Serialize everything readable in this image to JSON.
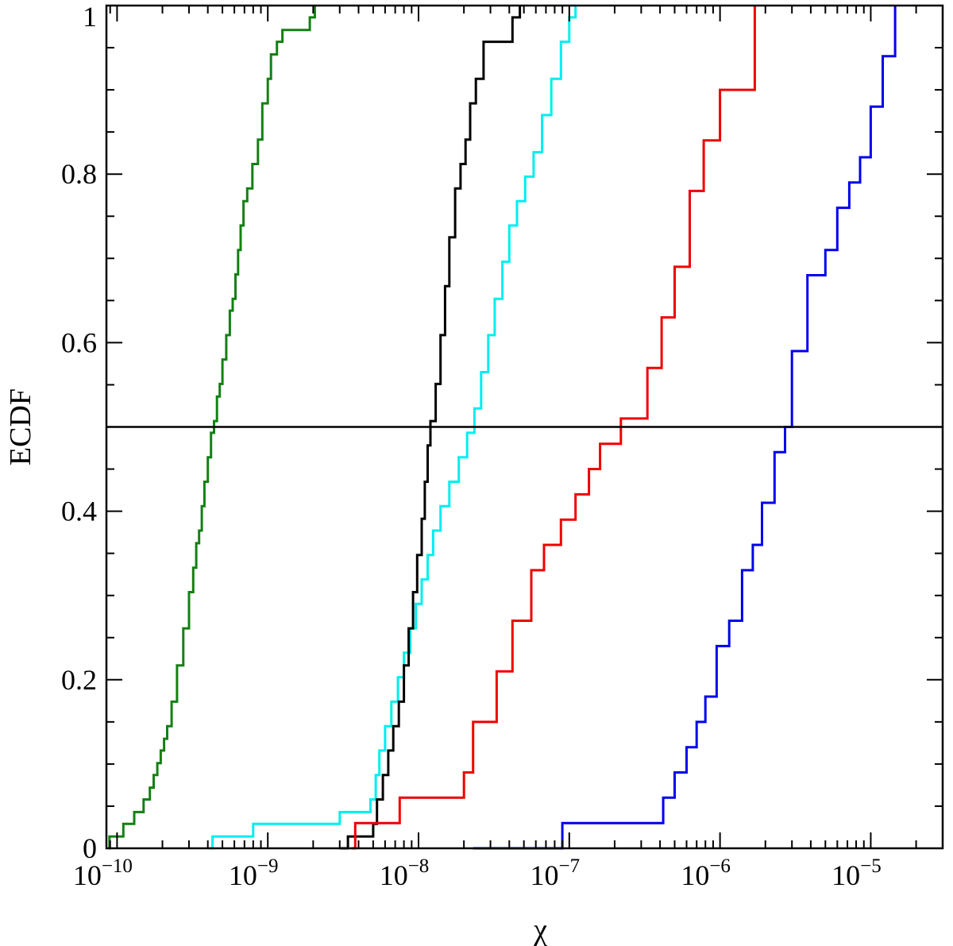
{
  "chart_data": {
    "type": "line",
    "title": "",
    "xlabel": "χ",
    "ylabel": "ECDF",
    "xscale": "log",
    "xlim": [
      8.5e-11,
      3e-05
    ],
    "ylim": [
      0,
      1
    ],
    "grid": false,
    "legend": "none",
    "x_ticks": [
      {
        "value": 1e-10,
        "base": "10",
        "exp": "−10"
      },
      {
        "value": 1e-09,
        "base": "10",
        "exp": "−9"
      },
      {
        "value": 1e-08,
        "base": "10",
        "exp": "−8"
      },
      {
        "value": 1e-07,
        "base": "10",
        "exp": "−7"
      },
      {
        "value": 1e-06,
        "base": "10",
        "exp": "−6"
      },
      {
        "value": 1e-05,
        "base": "10",
        "exp": "−5"
      }
    ],
    "y_ticks": [
      {
        "value": 0,
        "label": "0"
      },
      {
        "value": 0.2,
        "label": "0.2"
      },
      {
        "value": 0.4,
        "label": "0.4"
      },
      {
        "value": 0.6,
        "label": "0.6"
      },
      {
        "value": 0.8,
        "label": "0.8"
      },
      {
        "value": 1,
        "label": "1"
      }
    ],
    "reference_line": {
      "y": 0.5,
      "color": "#000000"
    },
    "series": [
      {
        "color": "#138013",
        "x": [
          8.8e-11,
          8.9e-11,
          1.1e-10,
          1.3e-10,
          1.5e-10,
          1.65e-10,
          1.75e-10,
          1.85e-10,
          1.95e-10,
          2.05e-10,
          2.15e-10,
          2.3e-10,
          2.5e-10,
          2.75e-10,
          3e-10,
          3.2e-10,
          3.35e-10,
          3.5e-10,
          3.65e-10,
          3.8e-10,
          4e-10,
          4.2e-10,
          4.4e-10,
          4.6e-10,
          4.8e-10,
          5e-10,
          5.3e-10,
          5.6e-10,
          5.85e-10,
          6.1e-10,
          6.35e-10,
          6.6e-10,
          6.9e-10,
          7.3e-10,
          7.9e-10,
          8.6e-10,
          9.2e-10,
          1e-09,
          1.05e-09,
          1.15e-09,
          1.25e-09,
          1.45e-09,
          1.9e-09,
          2.05e-09
        ],
        "y": [
          0,
          0.014,
          0.029,
          0.043,
          0.058,
          0.072,
          0.087,
          0.101,
          0.116,
          0.13,
          0.145,
          0.174,
          0.217,
          0.261,
          0.304,
          0.333,
          0.362,
          0.377,
          0.406,
          0.435,
          0.464,
          0.493,
          0.507,
          0.536,
          0.551,
          0.58,
          0.609,
          0.638,
          0.652,
          0.681,
          0.71,
          0.739,
          0.768,
          0.783,
          0.812,
          0.841,
          0.884,
          0.913,
          0.942,
          0.957,
          0.971,
          0.971,
          0.986,
          1.0
        ]
      },
      {
        "color": "#00eeee",
        "x": [
          4.1e-10,
          4.3e-10,
          8e-10,
          3e-09,
          4.8e-09,
          5.2e-09,
          5.5e-09,
          6e-09,
          6.6e-09,
          7.3e-09,
          8e-09,
          8.8e-09,
          9.6e-09,
          1.05e-08,
          1.15e-08,
          1.25e-08,
          1.4e-08,
          1.6e-08,
          1.85e-08,
          2.1e-08,
          2.35e-08,
          2.6e-08,
          2.9e-08,
          3.2e-08,
          3.6e-08,
          4e-08,
          4.5e-08,
          5.1e-08,
          5.8e-08,
          6.6e-08,
          7.6e-08,
          8.8e-08,
          1e-07,
          1.1e-07
        ],
        "y": [
          0,
          0.014,
          0.029,
          0.043,
          0.058,
          0.087,
          0.116,
          0.145,
          0.174,
          0.203,
          0.232,
          0.261,
          0.29,
          0.319,
          0.348,
          0.377,
          0.406,
          0.435,
          0.464,
          0.493,
          0.522,
          0.565,
          0.609,
          0.652,
          0.696,
          0.739,
          0.768,
          0.797,
          0.826,
          0.87,
          0.913,
          0.957,
          0.986,
          1.0
        ]
      },
      {
        "color": "#000000",
        "x": [
          3e-09,
          3.4e-09,
          5e-09,
          5.3e-09,
          5.8e-09,
          6.3e-09,
          6.8e-09,
          7.4e-09,
          8e-09,
          8.6e-09,
          9.2e-09,
          9.8e-09,
          1.05e-08,
          1.1e-08,
          1.15e-08,
          1.2e-08,
          1.3e-08,
          1.4e-08,
          1.5e-08,
          1.6e-08,
          1.75e-08,
          1.9e-08,
          2.05e-08,
          2.2e-08,
          2.4e-08,
          2.7e-08,
          4.2e-08,
          4.7e-08
        ],
        "y": [
          0,
          0.014,
          0.029,
          0.058,
          0.087,
          0.116,
          0.145,
          0.174,
          0.217,
          0.261,
          0.304,
          0.348,
          0.391,
          0.435,
          0.478,
          0.507,
          0.551,
          0.609,
          0.667,
          0.725,
          0.783,
          0.812,
          0.841,
          0.884,
          0.913,
          0.957,
          0.986,
          1.0
        ]
      },
      {
        "color": "#ee0000",
        "x": [
          3.6e-09,
          3.8e-09,
          7.5e-09,
          2e-08,
          2.3e-08,
          3.3e-08,
          4.2e-08,
          5.6e-08,
          6.8e-08,
          8.8e-08,
          1.1e-07,
          1.35e-07,
          1.6e-07,
          2.2e-07,
          3.3e-07,
          4.1e-07,
          5e-07,
          6.3e-07,
          7.8e-07,
          1e-06,
          1.7e-06
        ],
        "y": [
          0,
          0.03,
          0.06,
          0.09,
          0.15,
          0.21,
          0.27,
          0.33,
          0.36,
          0.39,
          0.42,
          0.45,
          0.48,
          0.51,
          0.57,
          0.63,
          0.69,
          0.78,
          0.84,
          0.9,
          1.0
        ]
      },
      {
        "color": "#0000ee",
        "x": [
          2.3e-08,
          9e-08,
          4.2e-07,
          5e-07,
          6e-07,
          7e-07,
          8e-07,
          9.5e-07,
          1.15e-06,
          1.4e-06,
          1.65e-06,
          1.9e-06,
          2.3e-06,
          2.7e-06,
          3e-06,
          3.8e-06,
          5e-06,
          6e-06,
          7.2e-06,
          8.5e-06,
          1e-05,
          1.2e-05,
          1.45e-05
        ],
        "y": [
          0,
          0.03,
          0.06,
          0.09,
          0.12,
          0.15,
          0.18,
          0.24,
          0.27,
          0.33,
          0.36,
          0.41,
          0.47,
          0.5,
          0.59,
          0.68,
          0.71,
          0.76,
          0.79,
          0.82,
          0.88,
          0.94,
          1.0
        ]
      }
    ]
  }
}
